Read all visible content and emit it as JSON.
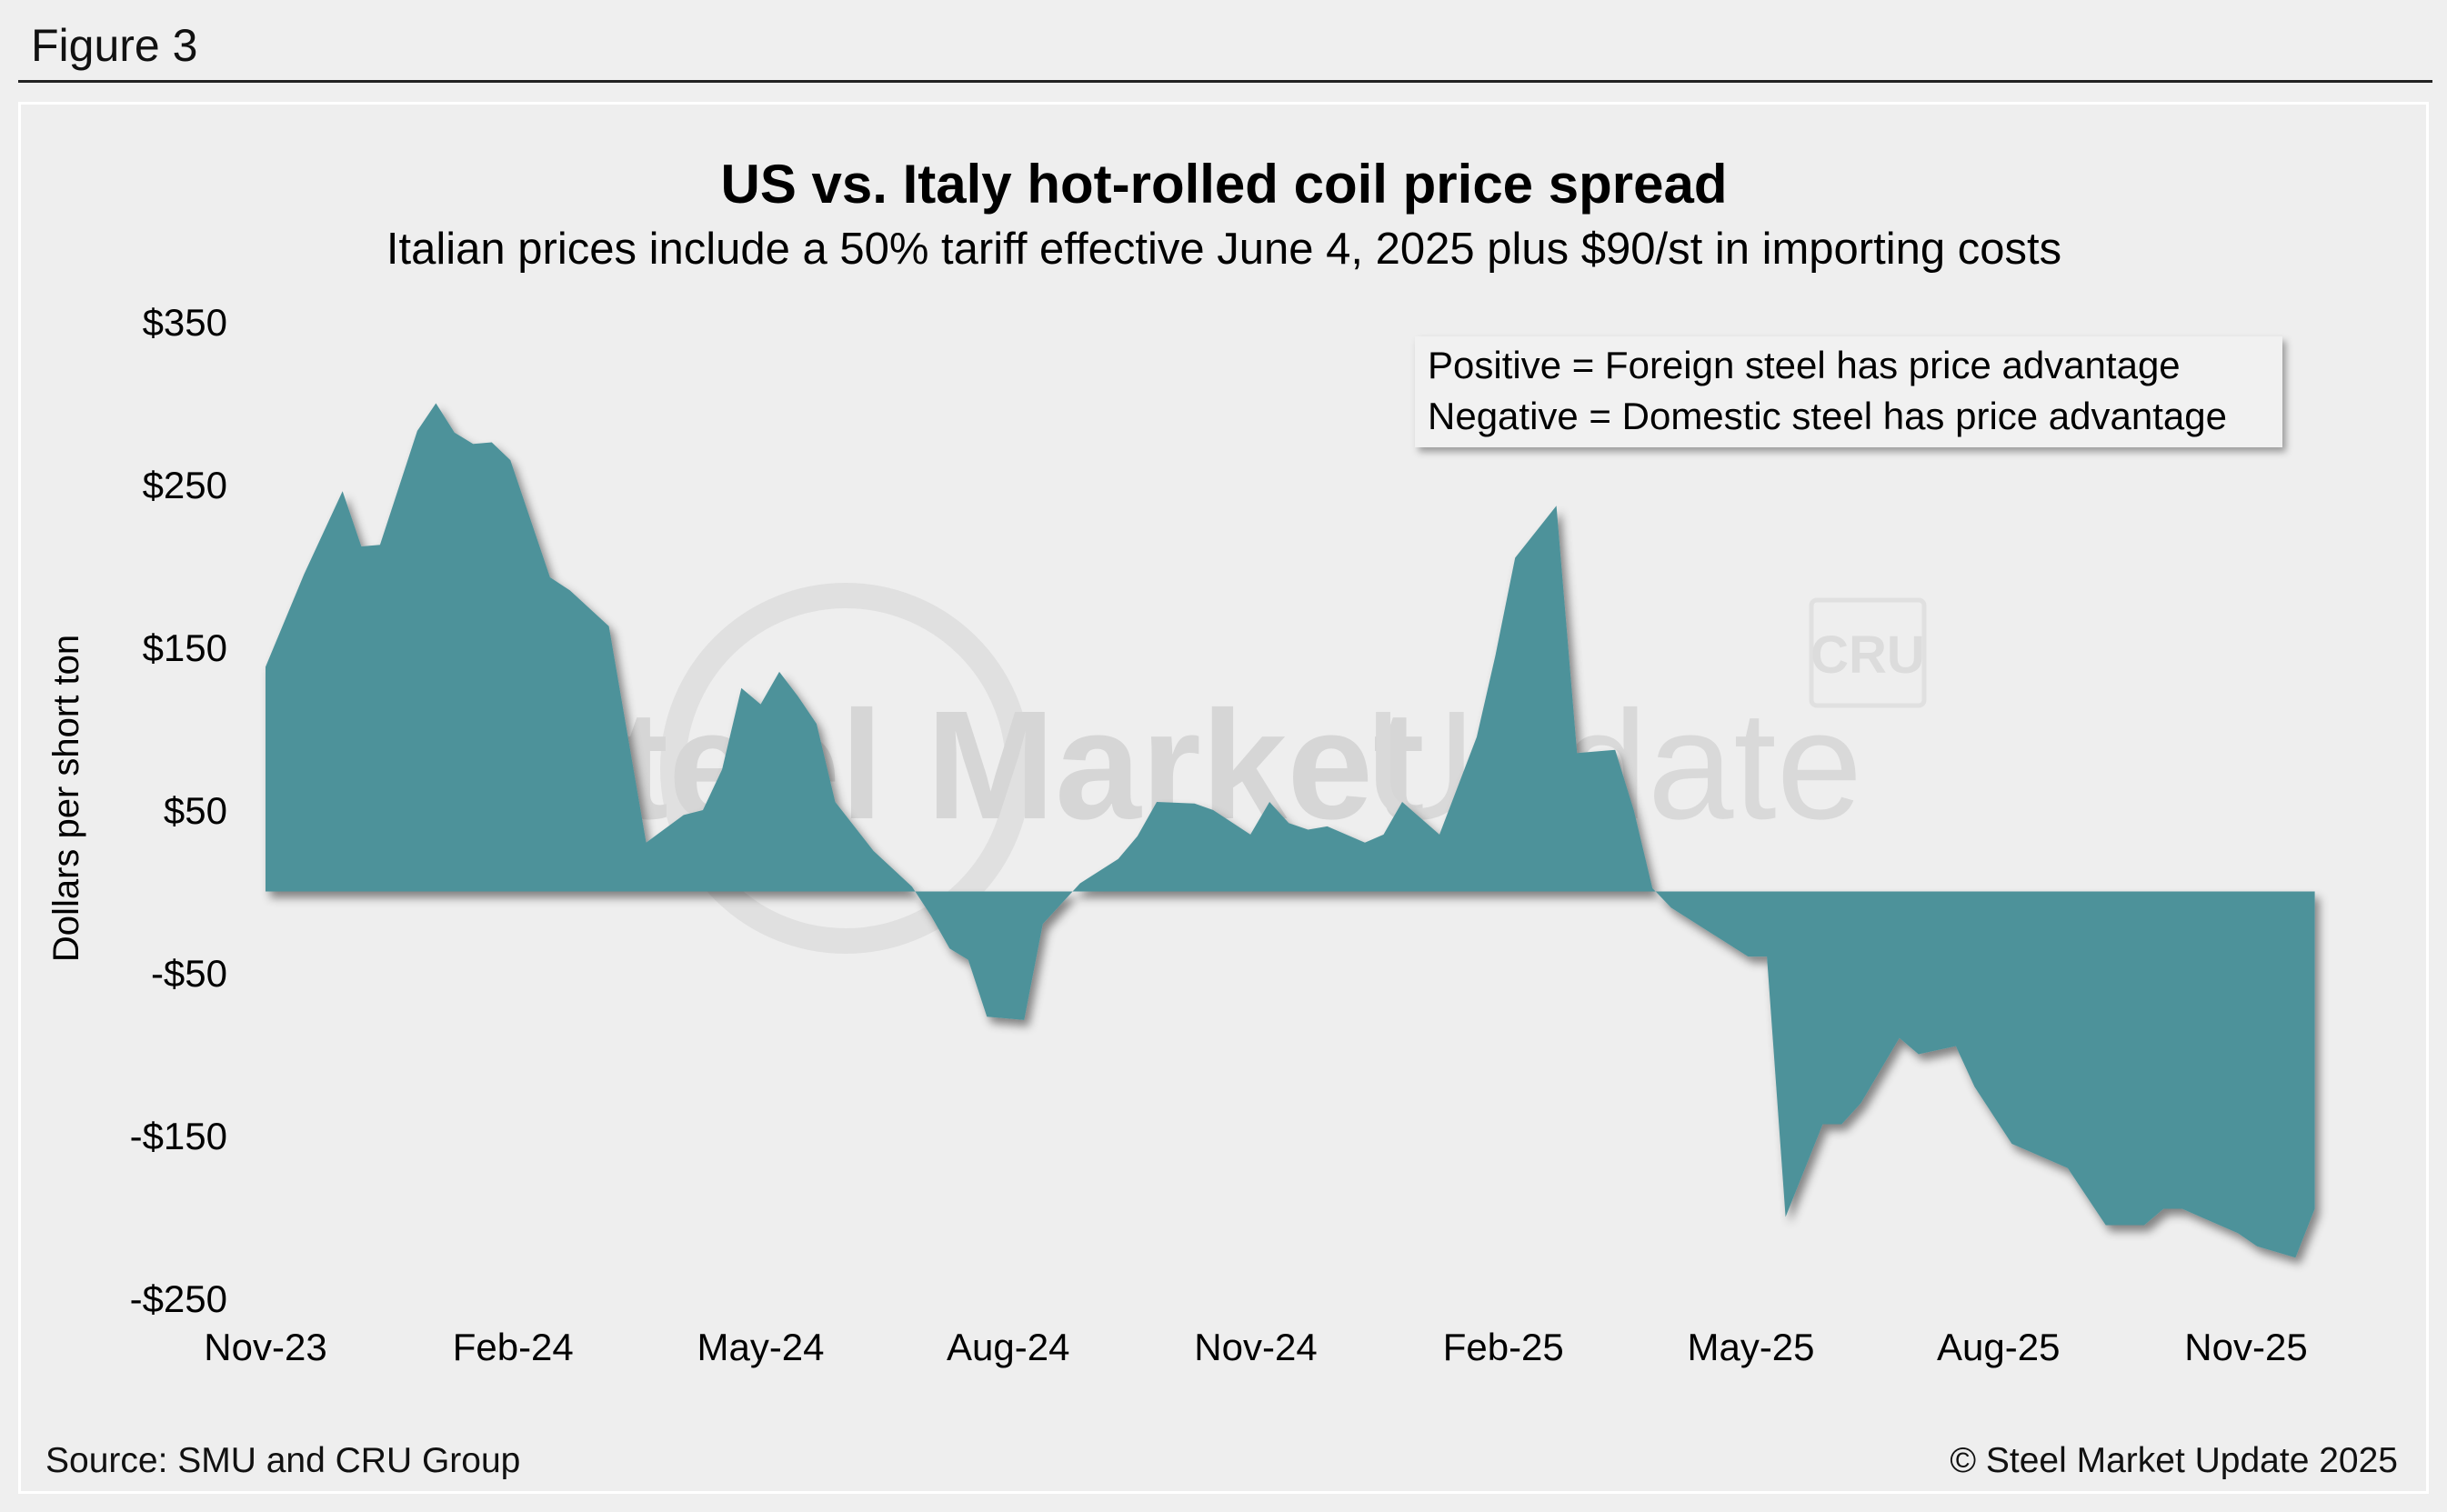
{
  "figure_label": "Figure 3",
  "watermark": {
    "brand_bold": "Steel Market",
    "brand_light": "Update",
    "badge": "CRU"
  },
  "legend": {
    "line1": "Positive = Foreign steel has price advantage",
    "line2": "Negative = Domestic steel has price advantage"
  },
  "footer": {
    "source": "Source: SMU and CRU Group",
    "copyright": "© Steel Market Update 2025"
  },
  "colors": {
    "area_fill": "#4e929a",
    "background": "#eeeeee"
  },
  "chart_data": {
    "type": "area",
    "title": "US vs. Italy hot-rolled coil price spread",
    "subtitle": "Italian prices include a 50% tariff effective June 4, 2025 plus $90/st in importing costs",
    "ylabel": "Dollars per short ton",
    "xlabel": "",
    "ylim": [
      -250,
      350
    ],
    "yticks": [
      350,
      250,
      150,
      50,
      -50,
      -150,
      -250
    ],
    "ytick_labels": [
      "$350",
      "$250",
      "$150",
      "$50",
      "-$50",
      "-$150",
      "-$250"
    ],
    "xticks": [
      "2023-11",
      "2024-02",
      "2024-05",
      "2024-08",
      "2024-11",
      "2025-02",
      "2025-05",
      "2025-08",
      "2025-11"
    ],
    "xtick_labels": [
      "Nov-23",
      "Feb-24",
      "May-24",
      "Aug-24",
      "Nov-24",
      "Feb-25",
      "May-25",
      "Aug-25",
      "Nov-25"
    ],
    "x_domain": [
      "2023-11",
      "2025-11"
    ],
    "grid": false,
    "legend_position": "top-right",
    "series": [
      {
        "values_x": [
          "2023-11-01",
          "2023-11-15",
          "2023-11-29",
          "2023-12-06",
          "2023-12-13",
          "2023-12-27",
          "2024-01-03",
          "2024-01-10",
          "2024-01-17",
          "2024-01-24",
          "2024-01-31",
          "2024-02-14",
          "2024-02-21",
          "2024-03-06",
          "2024-03-20",
          "2024-04-03",
          "2024-04-10",
          "2024-04-17",
          "2024-04-24",
          "2024-05-01",
          "2024-05-08",
          "2024-05-15",
          "2024-05-22",
          "2024-05-29",
          "2024-06-12",
          "2024-06-26",
          "2024-07-03",
          "2024-07-10",
          "2024-07-17",
          "2024-07-24",
          "2024-08-07",
          "2024-08-14",
          "2024-08-28",
          "2024-09-11",
          "2024-09-18",
          "2024-09-25",
          "2024-10-09",
          "2024-10-16",
          "2024-10-30",
          "2024-11-06",
          "2024-11-13",
          "2024-11-20",
          "2024-11-27",
          "2024-12-11",
          "2024-12-18",
          "2024-12-25",
          "2025-01-08",
          "2025-01-22",
          "2025-01-29",
          "2025-02-05",
          "2025-02-19",
          "2025-02-26",
          "2025-03-12",
          "2025-03-19",
          "2025-03-26",
          "2025-04-02",
          "2025-04-16",
          "2025-04-30",
          "2025-05-07",
          "2025-05-14",
          "2025-05-28",
          "2025-06-04",
          "2025-06-11",
          "2025-06-25",
          "2025-07-02",
          "2025-07-16",
          "2025-07-23",
          "2025-08-06",
          "2025-08-13",
          "2025-08-27",
          "2025-09-10",
          "2025-09-24",
          "2025-10-01",
          "2025-10-08",
          "2025-10-15",
          "2025-10-29",
          "2025-11-05",
          "2025-11-19",
          "2025-11-26"
        ],
        "values": [
          138,
          195,
          246,
          212,
          213,
          283,
          300,
          282,
          275,
          276,
          265,
          193,
          185,
          163,
          30,
          47,
          50,
          75,
          125,
          115,
          135,
          120,
          103,
          55,
          25,
          3,
          -15,
          -35,
          -42,
          -77,
          -79,
          -20,
          5,
          20,
          34,
          55,
          54,
          50,
          35,
          55,
          42,
          38,
          40,
          30,
          35,
          55,
          35,
          95,
          145,
          205,
          237,
          85,
          87,
          50,
          2,
          -10,
          -25,
          -40,
          -40,
          -200,
          -143,
          -143,
          -130,
          -90,
          -100,
          -95,
          -120,
          -155,
          -160,
          -170,
          -205,
          -205,
          -195,
          -195,
          -200,
          -210,
          -218,
          -225,
          -195
        ]
      }
    ]
  }
}
